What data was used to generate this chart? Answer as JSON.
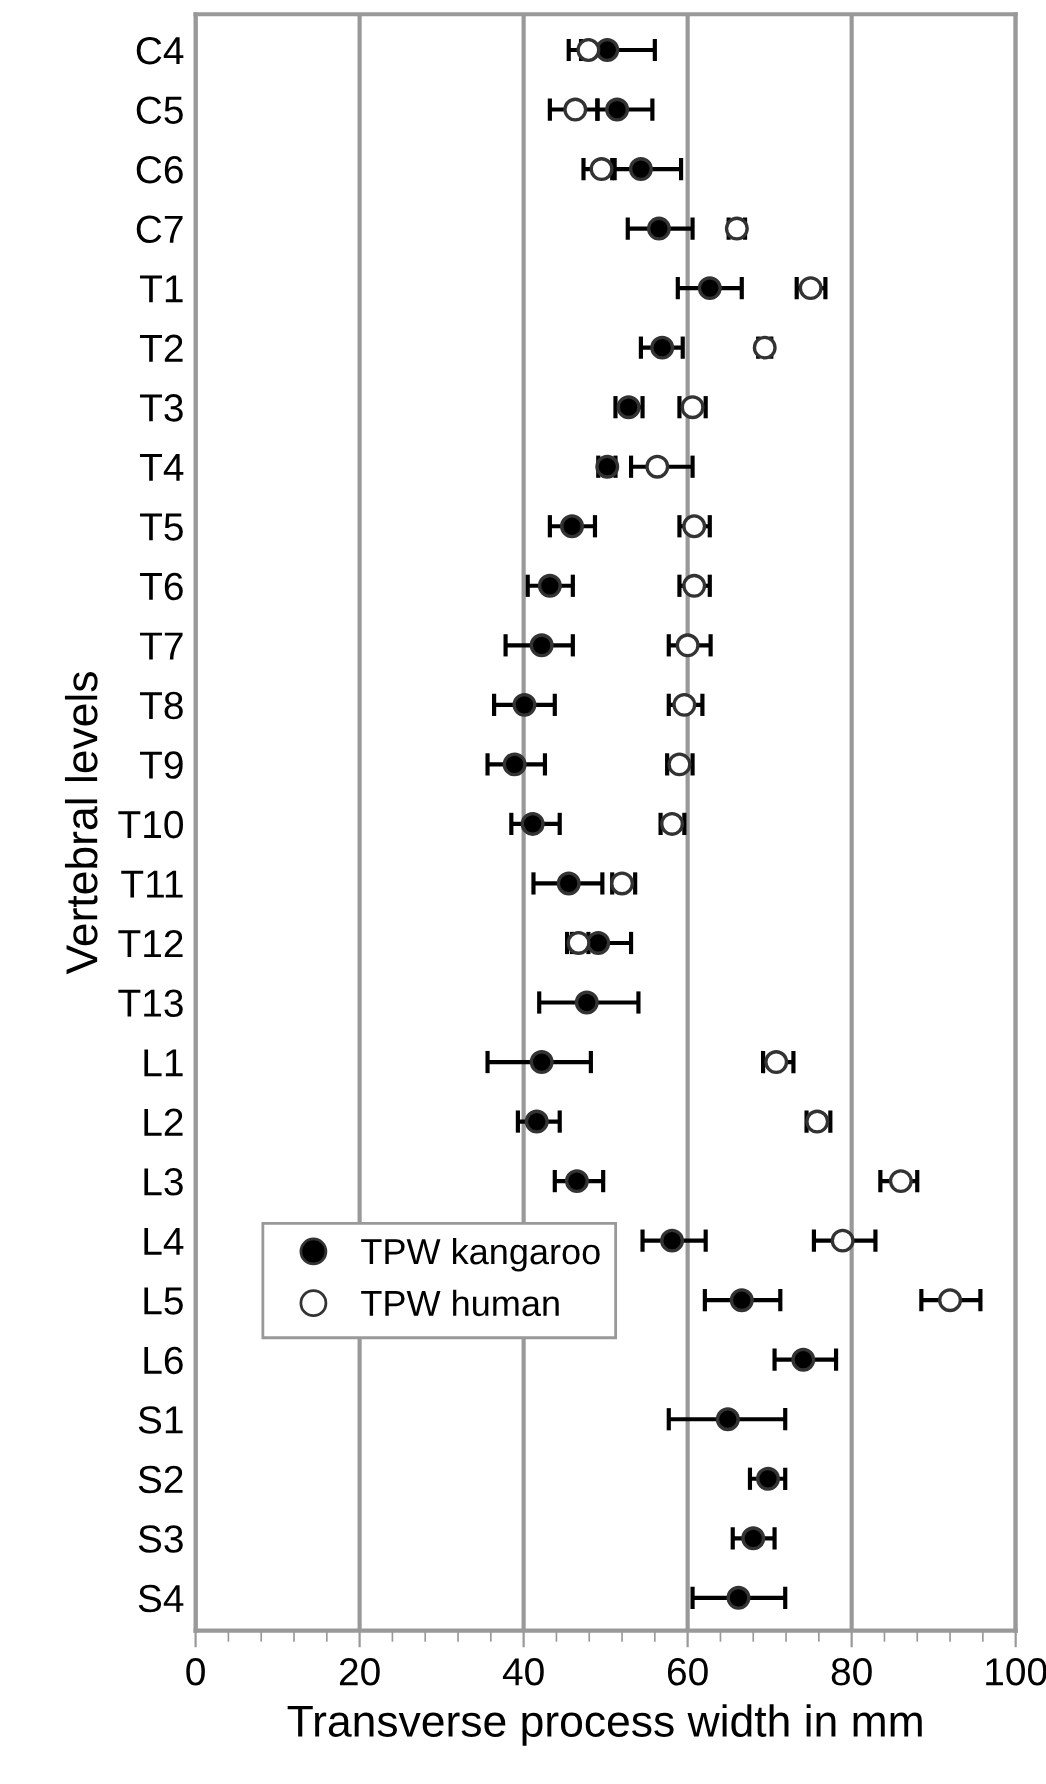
{
  "chart_data": {
    "type": "scatter",
    "orientation": "horizontal",
    "categories": [
      "C4",
      "C5",
      "C6",
      "C7",
      "T1",
      "T2",
      "T3",
      "T4",
      "T5",
      "T6",
      "T7",
      "T8",
      "T9",
      "T10",
      "T11",
      "T12",
      "T13",
      "L1",
      "L2",
      "L3",
      "L4",
      "L5",
      "L6",
      "S1",
      "S2",
      "S3",
      "S4"
    ],
    "xlabel": "Transverse process width in mm",
    "ylabel": "Vertebral levels",
    "xlim": [
      0,
      100
    ],
    "xticks": [
      0,
      20,
      40,
      60,
      80,
      100
    ],
    "grid": "x",
    "legend": "bottom left",
    "marker": "circle",
    "series": [
      {
        "name": "TPW kangaroo",
        "color": "#000000",
        "values": [
          50.2,
          51.4,
          54.3,
          56.5,
          62.7,
          56.9,
          52.8,
          50.2,
          45.9,
          43.2,
          42.2,
          40.1,
          38.9,
          41.1,
          45.5,
          49.1,
          47.7,
          42.2,
          41.6,
          46.5,
          58.1,
          66.6,
          74.1,
          64.9,
          69.8,
          68.0,
          66.2
        ],
        "errors": [
          [
            47,
            56
          ],
          [
            49,
            55.7
          ],
          [
            50.8,
            59.2
          ],
          [
            52.7,
            60.6
          ],
          [
            58.8,
            66.6
          ],
          [
            54.3,
            59.4
          ],
          [
            51.2,
            54.5
          ],
          [
            49.1,
            51.2
          ],
          [
            43.2,
            48.7
          ],
          [
            40.5,
            46
          ],
          [
            37.8,
            46
          ],
          [
            36.4,
            43.8
          ],
          [
            35.6,
            42.6
          ],
          [
            38.5,
            44.4
          ],
          [
            41.2,
            49.6
          ],
          [
            45.9,
            53.1
          ],
          [
            41.9,
            54
          ],
          [
            35.6,
            48.2
          ],
          [
            39.3,
            44.4
          ],
          [
            43.8,
            49.7
          ],
          [
            54.5,
            62.2
          ],
          [
            62.1,
            71.3
          ],
          [
            70.6,
            78.1
          ],
          [
            57.7,
            71.9
          ],
          [
            67.6,
            71.9
          ],
          [
            65.5,
            70.6
          ],
          [
            60.6,
            71.9
          ]
        ]
      },
      {
        "name": "TPW human",
        "color": "#ffffff",
        "values": [
          47.9,
          46.3,
          49.5,
          66,
          75,
          69.4,
          60.6,
          56.3,
          60.8,
          60.8,
          60,
          59.6,
          59,
          58.1,
          52,
          46.7,
          null,
          70.8,
          75.8,
          86,
          78.9,
          92,
          null,
          null,
          null,
          null,
          null
        ],
        "errors": [
          [
            45.5,
            50.5
          ],
          [
            43.2,
            49
          ],
          [
            47.3,
            51.1
          ],
          [
            65,
            67
          ],
          [
            73.3,
            76.8
          ],
          [
            68.6,
            70.2
          ],
          [
            59,
            62.2
          ],
          [
            53.1,
            60.6
          ],
          [
            59,
            62.7
          ],
          [
            59,
            62.7
          ],
          [
            57.7,
            62.8
          ],
          [
            57.7,
            61.8
          ],
          [
            57.5,
            60.6
          ],
          [
            56.7,
            59.6
          ],
          [
            50.8,
            53.6
          ],
          [
            45.3,
            47.9
          ],
          null,
          [
            69.2,
            72.9
          ],
          [
            74.5,
            77.4
          ],
          [
            83.5,
            88
          ],
          [
            75.4,
            82.9
          ],
          [
            88.5,
            95.7
          ],
          null,
          null,
          null,
          null,
          null
        ]
      }
    ]
  }
}
